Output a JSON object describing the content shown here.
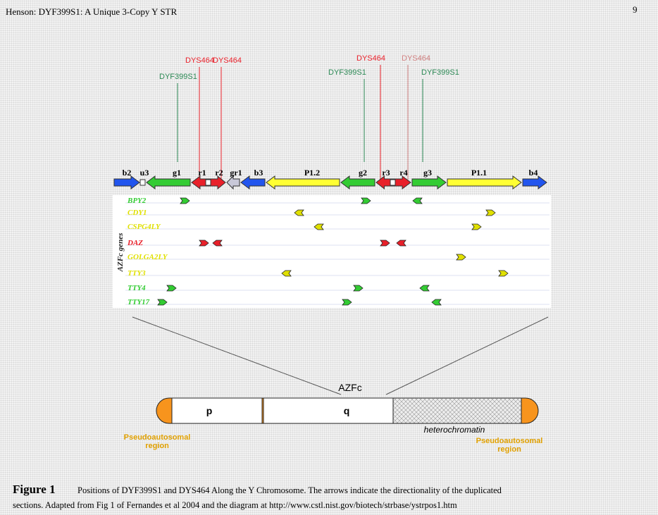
{
  "header": {
    "title": "Henson:  DYF399S1: A Unique 3-Copy Y STR",
    "page": "9"
  },
  "markers": [
    "DYF399S1",
    "DYS464",
    "DYS464",
    "DYF399S1",
    "DYS464",
    "DYS464",
    "DYF399S1"
  ],
  "segments": [
    "b2",
    "u3",
    "g1",
    "r1",
    "r2",
    "gr1",
    "b3",
    "P1.2",
    "g2",
    "r3",
    "r4",
    "g3",
    "P1.1",
    "b4"
  ],
  "genes": {
    "axis_label": "AZFc genes",
    "names": [
      "BPY2",
      "CDY1",
      "CSPG4LY",
      "DAZ",
      "GOLGA2LY",
      "TTY3",
      "TTY4",
      "TTY17"
    ]
  },
  "chromosome": {
    "region": "AZFc",
    "p": "p",
    "q": "q",
    "heterochromatin": "heterochromatin",
    "pseudoautosomal_left": "Pseudoautosomal region",
    "pseudoautosomal_right": "Pseudoautosomal region"
  },
  "caption": {
    "figure": "Figure 1",
    "line1": "Positions of DYF399S1 and DYS464 Along the Y Chromosome.  The arrows indicate the directionality of the duplicated",
    "line2": "sections.  Adapted from Fig 1 of Fernandes et al 2004 and the diagram at  http://www.cstl.nist.gov/biotech/strbase/ystrpos1.htm"
  }
}
